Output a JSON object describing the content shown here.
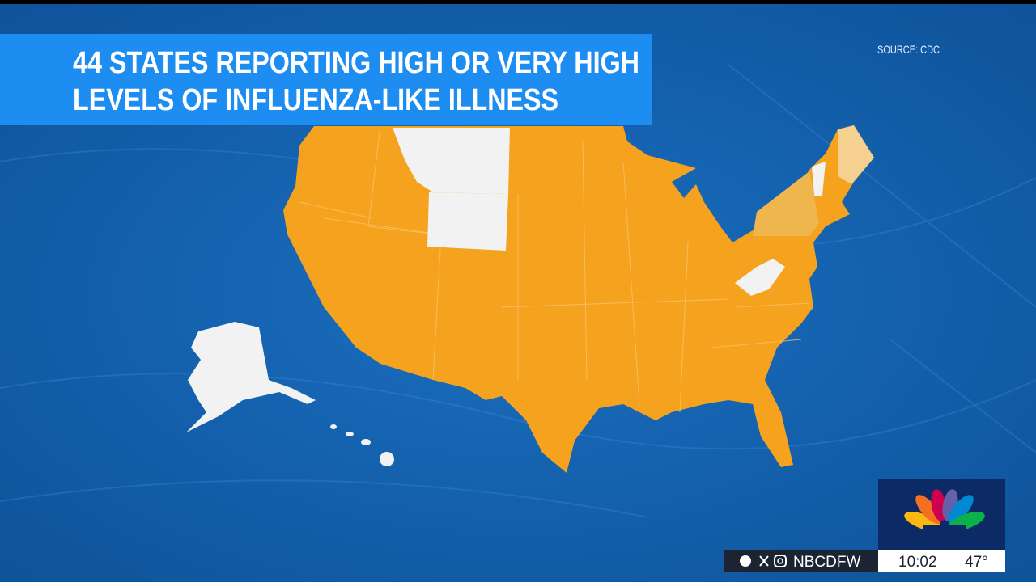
{
  "banner": {
    "lines": [
      "44 STATES REPORTING HIGH OR VERY HIGH",
      "LEVELS OF INFLUENZA-LIKE ILLNESS"
    ]
  },
  "source": "SOURCE: CDC",
  "ticker": {
    "handle": "NBCDFW",
    "time": "10:02",
    "temperature": "47°"
  }
}
